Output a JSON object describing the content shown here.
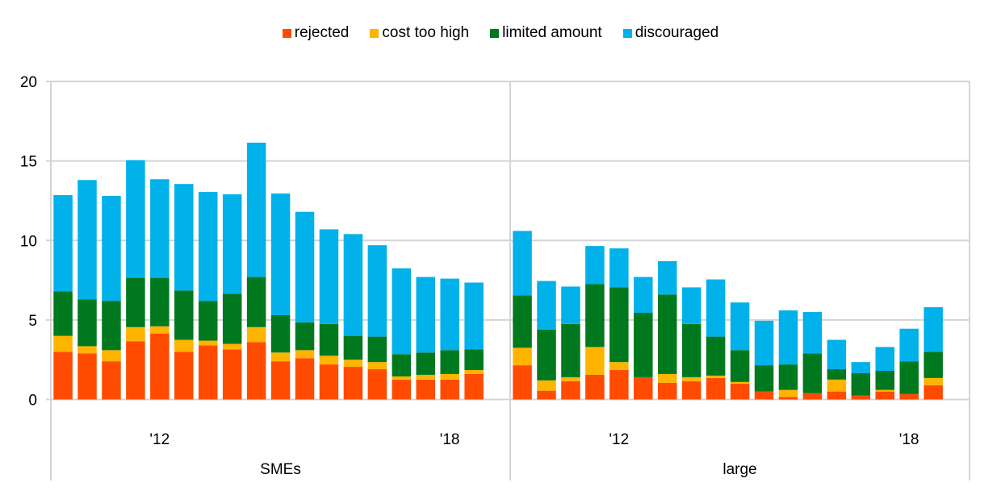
{
  "chart_data": {
    "type": "bar",
    "stacked": true,
    "title": "",
    "xlabel": "",
    "ylabel": "",
    "ylim": [
      0,
      20
    ],
    "yticks": [
      0,
      5,
      10,
      15,
      20
    ],
    "grid": true,
    "legend_position": "top-center",
    "series_names": [
      "rejected",
      "cost too high",
      "limited amount",
      "discouraged"
    ],
    "colors": {
      "rejected": "#FF4B00",
      "cost too high": "#FFB400",
      "limited amount": "#00781E",
      "discouraged": "#00B1EA"
    },
    "slots_per_panel": 19,
    "panels": [
      {
        "name": "SMEs",
        "tick_labels": [
          {
            "slot": 4,
            "label": "'12"
          },
          {
            "slot": 16,
            "label": "'18"
          }
        ],
        "series": [
          {
            "name": "rejected",
            "values": [
              3.0,
              2.9,
              2.4,
              3.65,
              4.15,
              3.0,
              3.4,
              3.15,
              3.6,
              2.4,
              2.6,
              2.2,
              2.05,
              1.9,
              1.25,
              1.25,
              1.25,
              1.6
            ]
          },
          {
            "name": "cost too high",
            "values": [
              1.0,
              0.45,
              0.7,
              0.9,
              0.45,
              0.75,
              0.3,
              0.35,
              0.95,
              0.55,
              0.5,
              0.55,
              0.45,
              0.45,
              0.2,
              0.3,
              0.35,
              0.25
            ]
          },
          {
            "name": "limited amount",
            "values": [
              2.8,
              2.95,
              3.1,
              3.1,
              3.05,
              3.1,
              2.5,
              3.15,
              3.15,
              2.35,
              1.75,
              2.0,
              1.5,
              1.6,
              1.4,
              1.4,
              1.5,
              1.3
            ]
          },
          {
            "name": "discouraged",
            "values": [
              6.05,
              7.5,
              6.6,
              7.4,
              6.2,
              6.7,
              6.85,
              6.25,
              8.45,
              7.65,
              6.95,
              5.95,
              6.4,
              5.75,
              5.4,
              4.75,
              4.5,
              4.2
            ]
          }
        ]
      },
      {
        "name": "large",
        "tick_labels": [
          {
            "slot": 4,
            "label": "'12"
          },
          {
            "slot": 16,
            "label": "'18"
          }
        ],
        "series": [
          {
            "name": "rejected",
            "values": [
              2.15,
              0.55,
              1.15,
              1.55,
              1.85,
              1.4,
              1.05,
              1.15,
              1.35,
              1.0,
              0.5,
              0.15,
              0.4,
              0.5,
              0.25,
              0.5,
              0.35,
              0.9
            ]
          },
          {
            "name": "cost too high",
            "values": [
              1.1,
              0.65,
              0.25,
              1.75,
              0.5,
              0.0,
              0.55,
              0.25,
              0.15,
              0.1,
              0.0,
              0.45,
              0.0,
              0.75,
              0.0,
              0.1,
              0.0,
              0.45
            ]
          },
          {
            "name": "limited amount",
            "values": [
              3.3,
              3.2,
              3.35,
              3.95,
              4.7,
              4.05,
              5.0,
              3.35,
              2.45,
              2.0,
              1.65,
              1.6,
              2.5,
              0.65,
              1.4,
              1.2,
              2.05,
              1.65
            ]
          },
          {
            "name": "discouraged",
            "values": [
              4.05,
              3.05,
              2.35,
              2.4,
              2.45,
              2.25,
              2.1,
              2.3,
              3.6,
              3.0,
              2.8,
              3.4,
              2.6,
              1.85,
              0.7,
              1.5,
              2.05,
              2.8
            ]
          }
        ]
      }
    ]
  }
}
